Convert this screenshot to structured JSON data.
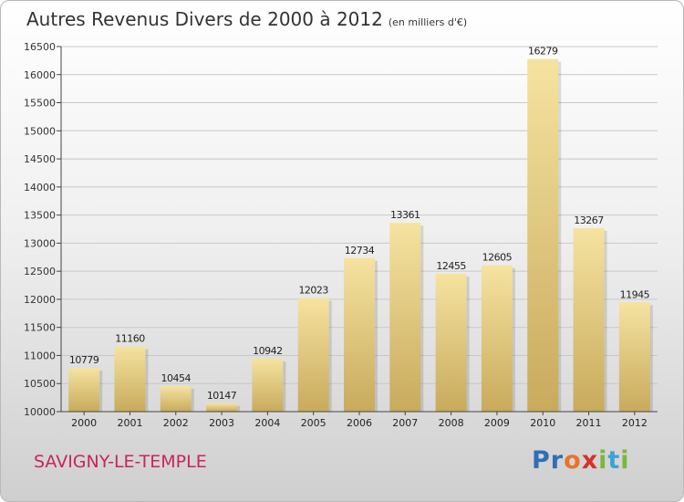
{
  "title": "Autres Revenus Divers de 2000 à 2012",
  "subtitle": "(en milliers d'€)",
  "city": "SAVIGNY-LE-TEMPLE",
  "logo": {
    "letters": [
      "P",
      "r",
      "o",
      "x",
      "i",
      "t",
      "i"
    ],
    "colors": [
      "#2e6fb7",
      "#2e6fb7",
      "#e8732a",
      "#d6322a",
      "#7ab839",
      "#3ba3d6",
      "#7ab839"
    ]
  },
  "colors": {
    "bar_light": "#f5e3a0",
    "bar_dark": "#c8aa5c",
    "axis": "#444444",
    "grid": "#c8c8c8"
  },
  "chart_data": {
    "type": "bar",
    "title": "Autres Revenus Divers de 2000 à 2012",
    "subtitle": "(en milliers d'€)",
    "categories": [
      "2000",
      "2001",
      "2002",
      "2003",
      "2004",
      "2005",
      "2006",
      "2007",
      "2008",
      "2009",
      "2010",
      "2011",
      "2012"
    ],
    "values": [
      10779,
      11160,
      10454,
      10147,
      10942,
      12023,
      12734,
      13361,
      12455,
      12605,
      16279,
      13267,
      11945
    ],
    "ylim": [
      10000,
      16500
    ],
    "yticks": [
      10000,
      10500,
      11000,
      11500,
      12000,
      12500,
      13000,
      13500,
      14000,
      14500,
      15000,
      15500,
      16000,
      16500
    ],
    "grid": true,
    "data_labels": true
  }
}
